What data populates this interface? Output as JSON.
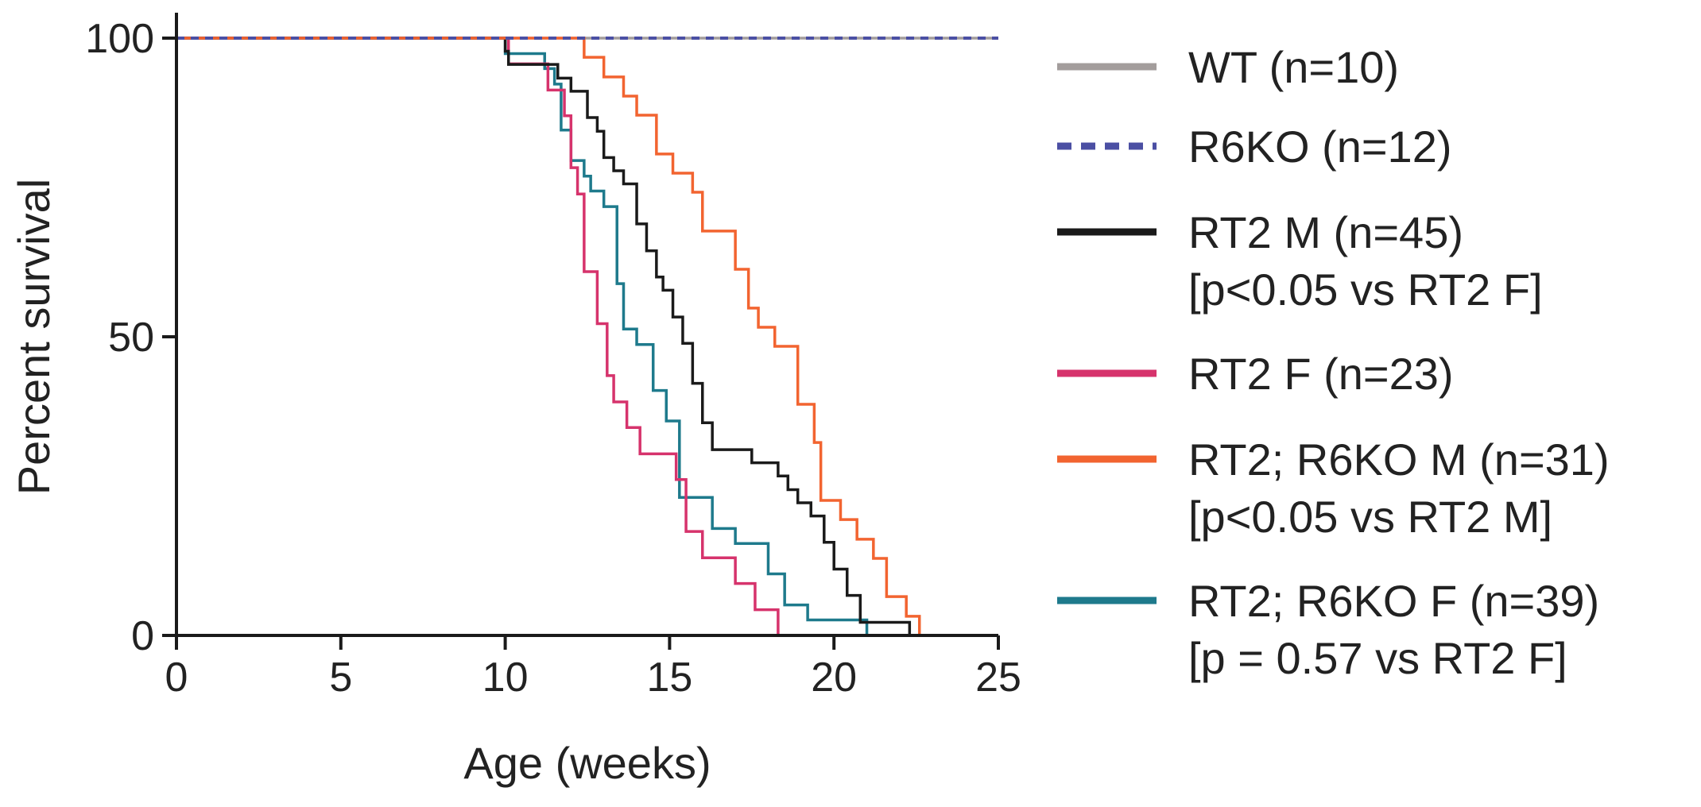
{
  "chart_data": {
    "type": "line",
    "subtype": "kaplan-meier step survival curves",
    "xlabel": "Age (weeks)",
    "ylabel": "Percent survival",
    "xlim": [
      0,
      25
    ],
    "ylim": [
      0,
      100
    ],
    "xticks": [
      0,
      5,
      10,
      15,
      20,
      25
    ],
    "yticks": [
      0,
      50,
      100
    ],
    "grid": false,
    "legend_position": "right",
    "series": [
      {
        "name": "WT (n=10)",
        "note": "",
        "color": "#a39d9c",
        "dashed": false,
        "x": [
          0,
          25
        ],
        "y": [
          100,
          100
        ]
      },
      {
        "name": "R6KO (n=12)",
        "note": "",
        "color": "#4b4fa3",
        "dashed": true,
        "x": [
          0,
          25
        ],
        "y": [
          100,
          100
        ]
      },
      {
        "name": "RT2 M (n=45)",
        "note": "[p<0.05 vs RT2 F]",
        "color": "#1a1a1a",
        "dashed": false,
        "x": [
          0,
          10.0,
          10.1,
          11.6,
          12.0,
          12.5,
          12.8,
          13.0,
          13.3,
          13.6,
          14.0,
          14.3,
          14.6,
          14.8,
          15.1,
          15.4,
          15.7,
          16.0,
          16.3,
          16.6,
          16.9,
          17.5,
          18.3,
          18.6,
          18.9,
          19.3,
          19.7,
          20.0,
          20.4,
          20.8,
          21.0,
          22.3
        ],
        "y": [
          100,
          97.8,
          95.6,
          93.3,
          91.1,
          86.7,
          84.4,
          80.0,
          77.8,
          75.6,
          68.9,
          64.4,
          60.0,
          57.8,
          53.3,
          48.9,
          42.2,
          35.6,
          31.1,
          31.1,
          31.1,
          28.9,
          26.7,
          24.4,
          22.2,
          20.0,
          15.6,
          11.1,
          6.7,
          2.2,
          2.2,
          0
        ]
      },
      {
        "name": "RT2 F (n=23)",
        "note": "",
        "color": "#d6336c",
        "dashed": false,
        "x": [
          0,
          10.1,
          10.2,
          11.3,
          11.8,
          12.0,
          12.2,
          12.4,
          12.8,
          13.1,
          13.3,
          13.7,
          14.1,
          15.2,
          15.5,
          16.0,
          16.4,
          17.0,
          17.6,
          18.0,
          18.2,
          18.3
        ],
        "y": [
          100,
          95.7,
          95.7,
          91.3,
          87.0,
          78.3,
          73.9,
          60.9,
          52.2,
          43.5,
          39.1,
          34.8,
          30.4,
          26.1,
          17.4,
          13.0,
          13.0,
          8.7,
          4.3,
          4.3,
          4.3,
          0
        ]
      },
      {
        "name": "RT2; R6KO M (n=31)",
        "note": "[p<0.05 vs RT2 M]",
        "color": "#f26430",
        "dashed": false,
        "x": [
          0,
          12.4,
          13.0,
          13.6,
          14.0,
          14.6,
          15.1,
          15.7,
          16.0,
          17.0,
          17.4,
          17.7,
          18.2,
          18.9,
          19.4,
          19.6,
          20.2,
          20.7,
          21.2,
          21.6,
          22.2,
          22.6,
          22.8
        ],
        "y": [
          100,
          96.8,
          93.5,
          90.3,
          87.1,
          80.6,
          77.4,
          74.2,
          67.7,
          61.3,
          54.8,
          51.6,
          48.4,
          38.7,
          32.3,
          22.6,
          19.4,
          16.1,
          12.9,
          6.5,
          3.2,
          0,
          0
        ]
      },
      {
        "name": "RT2; R6KO F (n=39)",
        "note": "[p = 0.57 vs RT2 F]",
        "color": "#1e7a8c",
        "dashed": false,
        "x": [
          0,
          10.0,
          11.2,
          11.5,
          11.7,
          12.0,
          12.4,
          12.6,
          13.0,
          13.4,
          13.6,
          14.0,
          14.5,
          14.9,
          15.3,
          15.6,
          16.3,
          17.0,
          18.0,
          18.5,
          19.2,
          20.0,
          21.0
        ],
        "y": [
          100,
          97.4,
          94.9,
          92.3,
          84.6,
          79.5,
          76.9,
          74.4,
          71.8,
          58.9,
          51.3,
          48.7,
          41.0,
          35.9,
          23.1,
          23.1,
          17.9,
          15.4,
          10.3,
          5.1,
          2.6,
          2.6,
          0
        ]
      }
    ]
  }
}
